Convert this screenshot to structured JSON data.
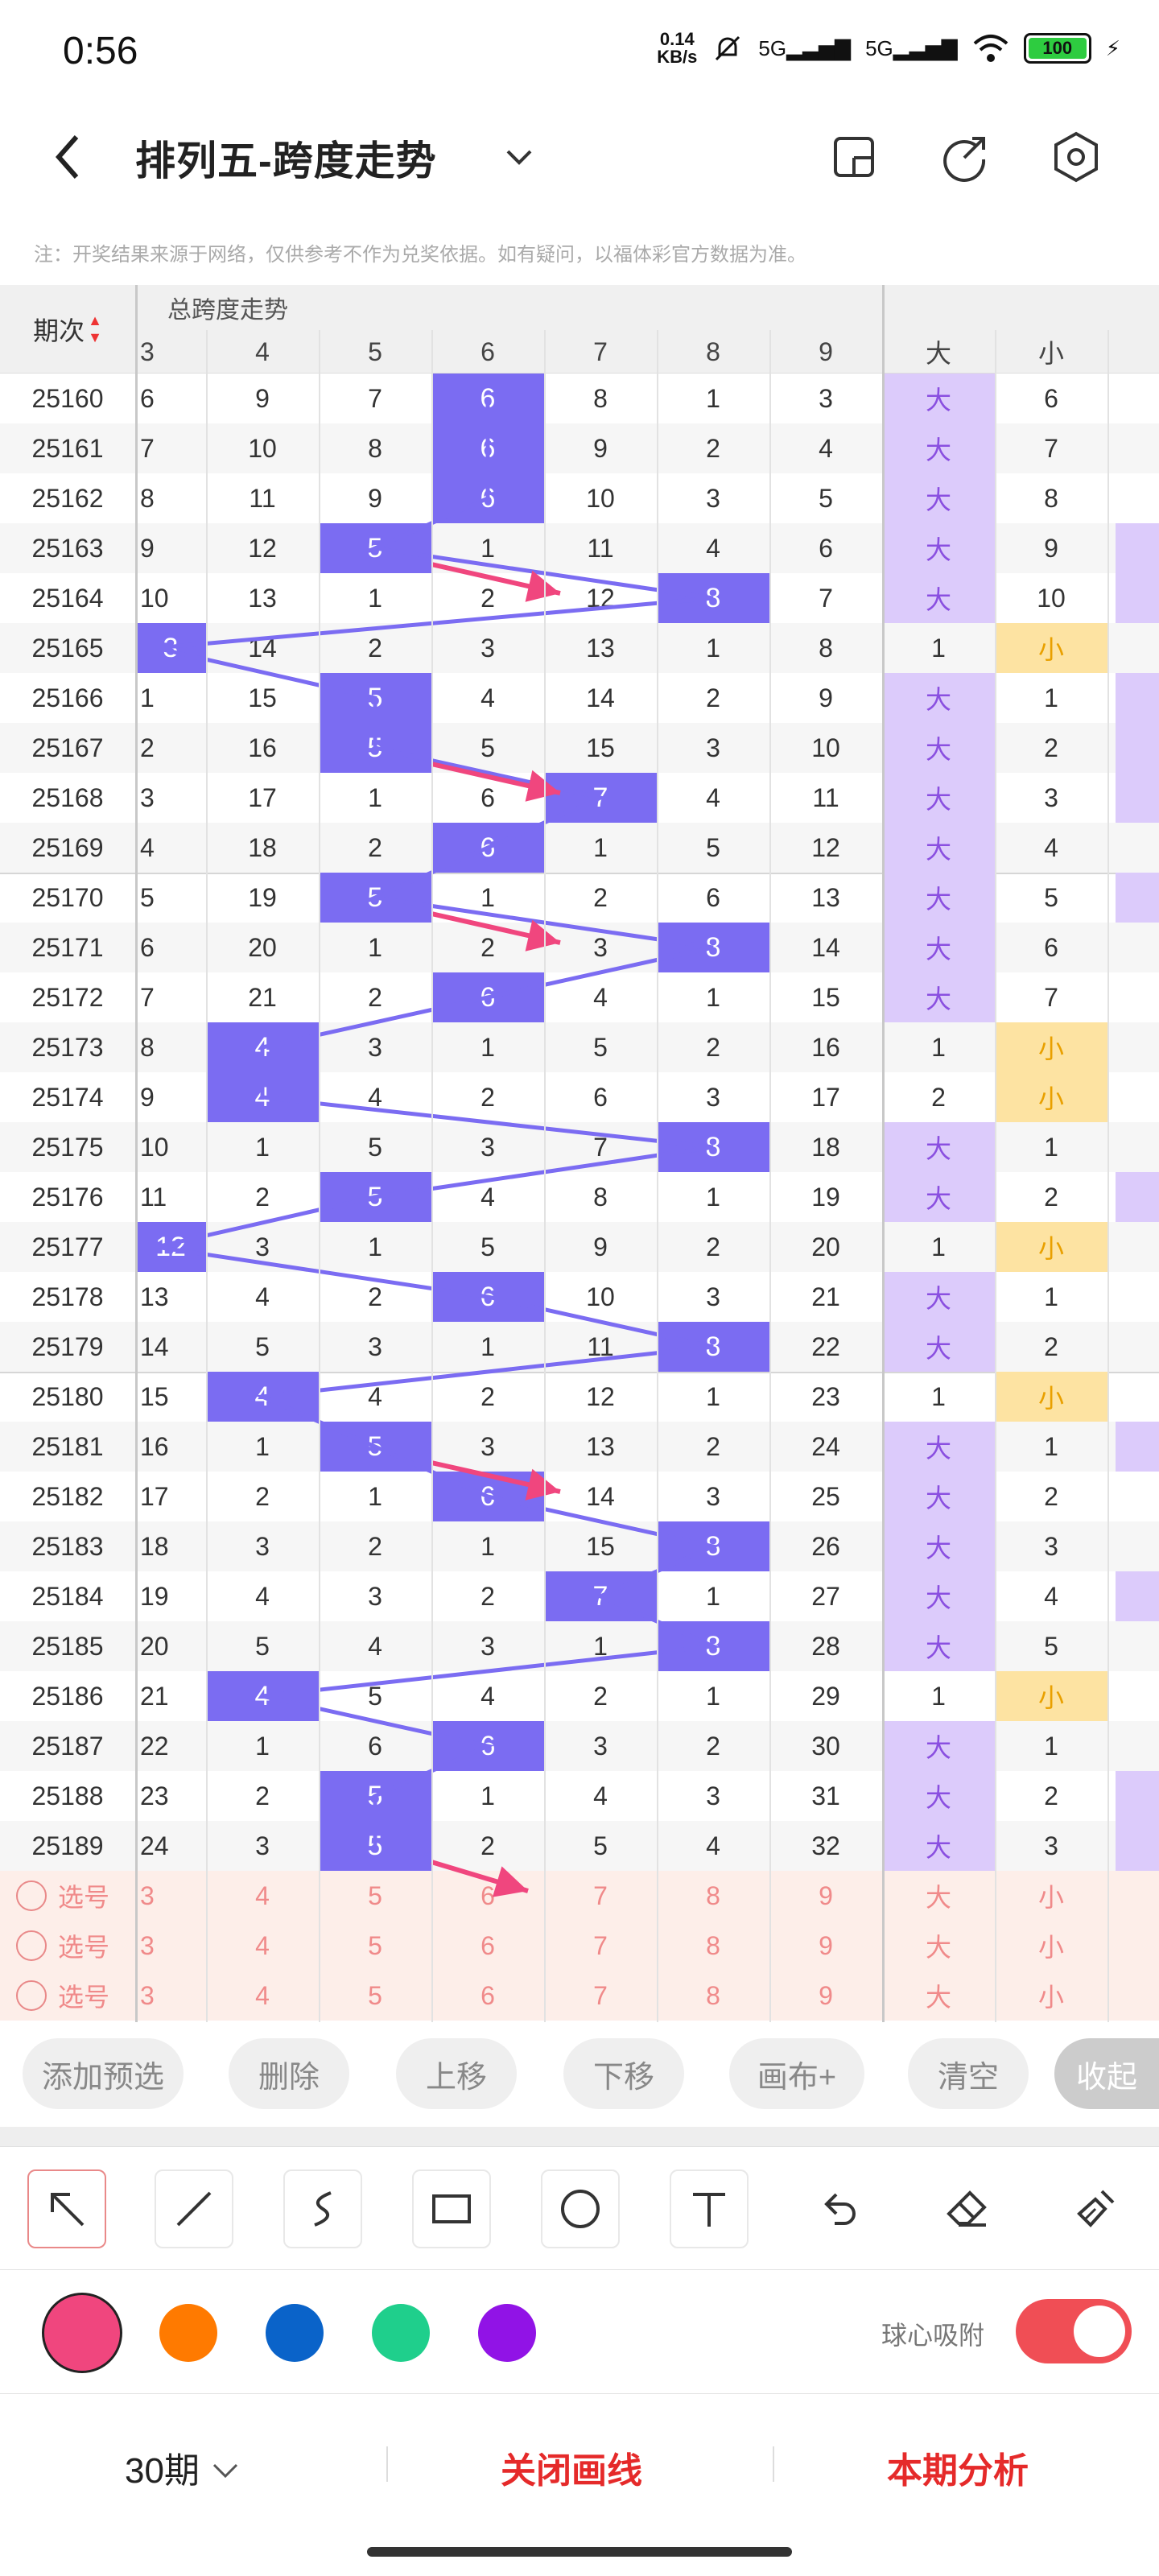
{
  "status_bar": {
    "time": "0:56",
    "speed_top": "0.14",
    "speed_bottom": "KB/s",
    "signal1": "5G",
    "signal2": "5G",
    "battery": "100"
  },
  "app_bar": {
    "title": "排列五-跨度走势"
  },
  "notice": "注：开奖结果来源于网络，仅供参考不作为兑奖依据。如有疑问，以福体彩官方数据为准。",
  "table": {
    "period_header": "期次",
    "group_header": "总跨度走势",
    "span_columns": [
      "3",
      "4",
      "5",
      "6",
      "7",
      "8",
      "9"
    ],
    "size_columns": [
      "大",
      "小"
    ],
    "rows": [
      {
        "period": "25160",
        "cells": [
          "6",
          "9",
          "7",
          "6",
          "8",
          "1",
          "3"
        ],
        "hit": 3,
        "big": "大",
        "small": "6",
        "is_big": true
      },
      {
        "period": "25161",
        "cells": [
          "7",
          "10",
          "8",
          "6",
          "9",
          "2",
          "4"
        ],
        "hit": 3,
        "big": "大",
        "small": "7",
        "is_big": true
      },
      {
        "period": "25162",
        "cells": [
          "8",
          "11",
          "9",
          "6",
          "10",
          "3",
          "5"
        ],
        "hit": 3,
        "big": "大",
        "small": "8",
        "is_big": true
      },
      {
        "period": "25163",
        "cells": [
          "9",
          "12",
          "5",
          "1",
          "11",
          "4",
          "6"
        ],
        "hit": 2,
        "big": "大",
        "small": "9",
        "is_big": true
      },
      {
        "period": "25164",
        "cells": [
          "10",
          "13",
          "1",
          "2",
          "12",
          "8",
          "7"
        ],
        "hit": 5,
        "big": "大",
        "small": "10",
        "is_big": true
      },
      {
        "period": "25165",
        "cells": [
          "3",
          "14",
          "2",
          "3",
          "13",
          "1",
          "8"
        ],
        "hit": 0,
        "big": "1",
        "small": "小",
        "is_big": false
      },
      {
        "period": "25166",
        "cells": [
          "1",
          "15",
          "5",
          "4",
          "14",
          "2",
          "9"
        ],
        "hit": 2,
        "big": "大",
        "small": "1",
        "is_big": true
      },
      {
        "period": "25167",
        "cells": [
          "2",
          "16",
          "5",
          "5",
          "15",
          "3",
          "10"
        ],
        "hit": 2,
        "big": "大",
        "small": "2",
        "is_big": true
      },
      {
        "period": "25168",
        "cells": [
          "3",
          "17",
          "1",
          "6",
          "7",
          "4",
          "11"
        ],
        "hit": 4,
        "big": "大",
        "small": "3",
        "is_big": true
      },
      {
        "period": "25169",
        "cells": [
          "4",
          "18",
          "2",
          "6",
          "1",
          "5",
          "12"
        ],
        "hit": 3,
        "big": "大",
        "small": "4",
        "is_big": true
      },
      {
        "period": "25170",
        "cells": [
          "5",
          "19",
          "5",
          "1",
          "2",
          "6",
          "13"
        ],
        "hit": 2,
        "big": "大",
        "small": "5",
        "is_big": true
      },
      {
        "period": "25171",
        "cells": [
          "6",
          "20",
          "1",
          "2",
          "3",
          "8",
          "14"
        ],
        "hit": 5,
        "big": "大",
        "small": "6",
        "is_big": true
      },
      {
        "period": "25172",
        "cells": [
          "7",
          "21",
          "2",
          "6",
          "4",
          "1",
          "15"
        ],
        "hit": 3,
        "big": "大",
        "small": "7",
        "is_big": true
      },
      {
        "period": "25173",
        "cells": [
          "8",
          "4",
          "3",
          "1",
          "5",
          "2",
          "16"
        ],
        "hit": 1,
        "big": "1",
        "small": "小",
        "is_big": false
      },
      {
        "period": "25174",
        "cells": [
          "9",
          "4",
          "4",
          "2",
          "6",
          "3",
          "17"
        ],
        "hit": 1,
        "big": "2",
        "small": "小",
        "is_big": false
      },
      {
        "period": "25175",
        "cells": [
          "10",
          "1",
          "5",
          "3",
          "7",
          "8",
          "18"
        ],
        "hit": 5,
        "big": "大",
        "small": "1",
        "is_big": true
      },
      {
        "period": "25176",
        "cells": [
          "11",
          "2",
          "5",
          "4",
          "8",
          "1",
          "19"
        ],
        "hit": 2,
        "big": "大",
        "small": "2",
        "is_big": true
      },
      {
        "period": "25177",
        "cells": [
          "12",
          "3",
          "1",
          "5",
          "9",
          "2",
          "20"
        ],
        "hit": 0,
        "big": "1",
        "small": "小",
        "is_big": false
      },
      {
        "period": "25178",
        "cells": [
          "13",
          "4",
          "2",
          "6",
          "10",
          "3",
          "21"
        ],
        "hit": 3,
        "big": "大",
        "small": "1",
        "is_big": true
      },
      {
        "period": "25179",
        "cells": [
          "14",
          "5",
          "3",
          "1",
          "11",
          "8",
          "22"
        ],
        "hit": 5,
        "big": "大",
        "small": "2",
        "is_big": true
      },
      {
        "period": "25180",
        "cells": [
          "15",
          "4",
          "4",
          "2",
          "12",
          "1",
          "23"
        ],
        "hit": 1,
        "big": "1",
        "small": "小",
        "is_big": false
      },
      {
        "period": "25181",
        "cells": [
          "16",
          "1",
          "5",
          "3",
          "13",
          "2",
          "24"
        ],
        "hit": 2,
        "big": "大",
        "small": "1",
        "is_big": true
      },
      {
        "period": "25182",
        "cells": [
          "17",
          "2",
          "1",
          "6",
          "14",
          "3",
          "25"
        ],
        "hit": 3,
        "big": "大",
        "small": "2",
        "is_big": true
      },
      {
        "period": "25183",
        "cells": [
          "18",
          "3",
          "2",
          "1",
          "15",
          "8",
          "26"
        ],
        "hit": 5,
        "big": "大",
        "small": "3",
        "is_big": true
      },
      {
        "period": "25184",
        "cells": [
          "19",
          "4",
          "3",
          "2",
          "7",
          "1",
          "27"
        ],
        "hit": 4,
        "big": "大",
        "small": "4",
        "is_big": true
      },
      {
        "period": "25185",
        "cells": [
          "20",
          "5",
          "4",
          "3",
          "1",
          "8",
          "28"
        ],
        "hit": 5,
        "big": "大",
        "small": "5",
        "is_big": true
      },
      {
        "period": "25186",
        "cells": [
          "21",
          "4",
          "5",
          "4",
          "2",
          "1",
          "29"
        ],
        "hit": 1,
        "big": "1",
        "small": "小",
        "is_big": false
      },
      {
        "period": "25187",
        "cells": [
          "22",
          "1",
          "6",
          "6",
          "3",
          "2",
          "30"
        ],
        "hit": 3,
        "big": "大",
        "small": "1",
        "is_big": true
      },
      {
        "period": "25188",
        "cells": [
          "23",
          "2",
          "5",
          "1",
          "4",
          "3",
          "31"
        ],
        "hit": 2,
        "big": "大",
        "small": "2",
        "is_big": true
      },
      {
        "period": "25189",
        "cells": [
          "24",
          "3",
          "5",
          "2",
          "5",
          "4",
          "32"
        ],
        "hit": 2,
        "big": "大",
        "small": "3",
        "is_big": true
      }
    ],
    "predict_label": "选号",
    "predict_cells": [
      "3",
      "4",
      "5",
      "6",
      "7",
      "8",
      "9",
      "大",
      "小"
    ]
  },
  "actions": [
    "添加预选",
    "删除",
    "上移",
    "下移",
    "画布+",
    "清空",
    "收起"
  ],
  "tools": [
    "arrow-tool",
    "line-tool",
    "curve-tool",
    "rect-tool",
    "circle-tool",
    "text-tool",
    "undo-tool",
    "eraser-tool",
    "clear-tool"
  ],
  "colors": [
    "#f0467e",
    "#ff7a00",
    "#0a63c9",
    "#1fcf8c",
    "#9113e6"
  ],
  "snap_label": "球心吸附",
  "bottom": {
    "period": "30期",
    "close_lines": "关闭画线",
    "analysis": "本期分析"
  }
}
